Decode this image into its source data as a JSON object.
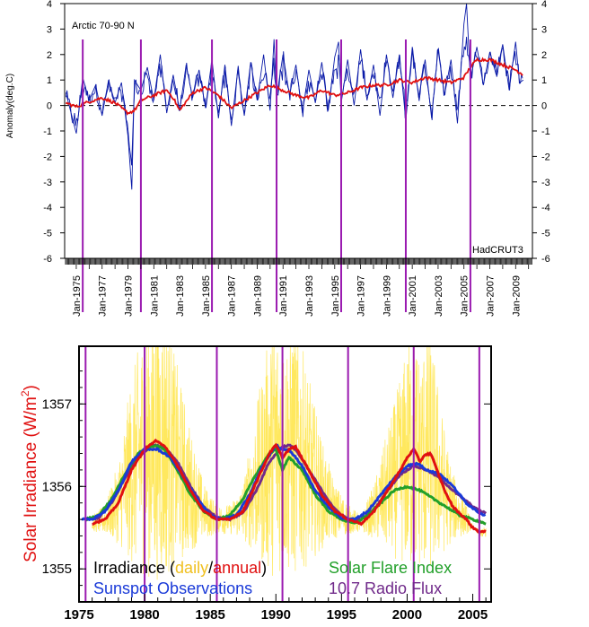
{
  "chart_data": [
    {
      "type": "line",
      "title": "Arctic 70-90 N",
      "source_label": "HadCRUT3",
      "ylabel": "Anomaly(deg.C)",
      "ylim": [
        -6,
        4
      ],
      "yticks": [
        4,
        3,
        2,
        1,
        0,
        -1,
        -2,
        -3,
        -4,
        -5,
        -6
      ],
      "xlim": [
        1974.1,
        2010.3
      ],
      "xtick_labels": [
        "Jan-1975",
        "Jan-1977",
        "Jan-1979",
        "Jan-1981",
        "Jan-1983",
        "Jan-1985",
        "Jan-1987",
        "Jan-1989",
        "Jan-1991",
        "Jan-1993",
        "Jan-1995",
        "Jan-1997",
        "Jan-1999",
        "Jan-2001",
        "Jan-2003",
        "Jan-2005",
        "Jan-2007",
        "Jan-2009"
      ],
      "zero_line": "dashed",
      "series": [
        {
          "style": "monthly",
          "color": "#0a1aa8",
          "x": [
            1974.2,
            1975.0,
            1975.5,
            1976.0,
            1976.5,
            1977.0,
            1977.5,
            1978.0,
            1978.5,
            1979.0,
            1979.3,
            1979.5,
            1980.0,
            1980.5,
            1981.0,
            1981.5,
            1982.0,
            1982.5,
            1983.0,
            1983.5,
            1984.0,
            1984.5,
            1985.0,
            1985.5,
            1986.0,
            1986.5,
            1987.0,
            1987.5,
            1988.0,
            1988.5,
            1989.0,
            1989.5,
            1990.0,
            1990.3,
            1990.5,
            1991.0,
            1991.5,
            1992.0,
            1992.5,
            1993.0,
            1993.5,
            1994.0,
            1994.5,
            1995.0,
            1995.3,
            1995.5,
            1996.0,
            1996.5,
            1997.0,
            1997.5,
            1998.0,
            1998.5,
            1999.0,
            1999.5,
            2000.0,
            2000.5,
            2001.0,
            2001.5,
            2002.0,
            2002.5,
            2003.0,
            2003.5,
            2004.0,
            2004.5,
            2005.0,
            2005.2,
            2005.5,
            2006.0,
            2006.5,
            2007.0,
            2007.5,
            2008.0,
            2008.5,
            2009.0,
            2009.3,
            2009.6
          ],
          "y": [
            0.5,
            -1.1,
            1.1,
            0.2,
            0.8,
            -0.4,
            1.0,
            0.1,
            0.9,
            -1.2,
            -3.3,
            1.0,
            0.6,
            1.5,
            0.2,
            2.0,
            -0.3,
            1.2,
            -0.2,
            1.6,
            0.3,
            1.4,
            -0.1,
            1.8,
            -0.5,
            1.6,
            -0.8,
            1.4,
            -0.4,
            1.7,
            0.2,
            2.0,
            -0.2,
            2.6,
            0.3,
            2.0,
            0.4,
            1.6,
            -0.3,
            1.4,
            0.1,
            1.7,
            -0.2,
            1.9,
            2.5,
            0.1,
            1.8,
            0.0,
            2.2,
            0.2,
            1.6,
            -0.4,
            2.0,
            0.3,
            2.0,
            -0.6,
            2.3,
            0.3,
            1.8,
            -0.5,
            2.2,
            0.4,
            1.8,
            -0.7,
            3.2,
            4.0,
            1.0,
            2.3,
            0.8,
            2.1,
            1.2,
            2.4,
            0.6,
            2.5,
            0.9,
            1.0
          ]
        },
        {
          "style": "smoothed",
          "color": "#e01010",
          "x": [
            1974.2,
            1975.0,
            1976.0,
            1977.0,
            1978.0,
            1979.0,
            1979.5,
            1980.0,
            1981.0,
            1982.0,
            1982.5,
            1983.0,
            1984.0,
            1985.0,
            1986.0,
            1987.0,
            1988.0,
            1989.0,
            1990.0,
            1991.0,
            1992.0,
            1993.0,
            1994.0,
            1995.0,
            1996.0,
            1997.0,
            1998.0,
            1999.0,
            2000.0,
            2001.0,
            2002.0,
            2003.0,
            2004.0,
            2005.0,
            2005.5,
            2006.0,
            2007.0,
            2008.0,
            2009.0,
            2009.6
          ],
          "y": [
            0.1,
            -0.05,
            0.15,
            0.3,
            0.1,
            -0.3,
            -0.2,
            0.2,
            0.4,
            0.6,
            0.3,
            -0.2,
            0.5,
            0.7,
            0.4,
            -0.1,
            0.2,
            0.5,
            0.8,
            0.6,
            0.4,
            0.3,
            0.6,
            0.4,
            0.5,
            0.7,
            0.8,
            0.8,
            1.0,
            0.9,
            1.1,
            1.0,
            0.9,
            1.1,
            1.5,
            1.8,
            1.8,
            1.6,
            1.4,
            1.2
          ]
        }
      ],
      "vertical_markers": [
        1975.5,
        1980.0,
        1985.5,
        1990.5,
        1995.5,
        2000.5,
        2005.5
      ]
    },
    {
      "type": "line",
      "ylabel": "Solar Irradiance (W/m²)",
      "ylabel_text": "Solar Irradiance (W/m",
      "ylabel_sup": "2",
      "ylabel_close": ")",
      "ylim": [
        1354.6,
        1357.7
      ],
      "yticks": [
        1357,
        1356,
        1355
      ],
      "xlim": [
        1975.0,
        2006.4
      ],
      "xticks": [
        1975,
        1980,
        1985,
        1990,
        1995,
        2000,
        2005
      ],
      "legend": {
        "irradiance_prefix": "Irradiance (",
        "daily": "daily",
        "slash": "/",
        "annual": "annual",
        "irradiance_suffix": ")",
        "flare": "Solar Flare Index",
        "sunspot": "Sunspot Observations",
        "radio": "10.7 Radio Flux"
      },
      "colors": {
        "daily": "#ffe64d",
        "annual": "#e01010",
        "flare": "#22a02a",
        "sunspot": "#1a3ad8",
        "radio": "#702a8a",
        "markers": "#9a1ab0"
      },
      "series": [
        {
          "name": "annual",
          "color": "#e01010",
          "x": [
            1976.0,
            1977.0,
            1978.0,
            1979.0,
            1980.0,
            1980.8,
            1981.5,
            1982.5,
            1983.5,
            1984.5,
            1985.5,
            1986.5,
            1987.5,
            1988.5,
            1989.5,
            1990.0,
            1990.5,
            1991.0,
            1991.5,
            1992.5,
            1993.5,
            1994.5,
            1995.5,
            1996.5,
            1997.5,
            1998.5,
            1999.5,
            2000.0,
            2000.5,
            2001.0,
            2001.3,
            2001.8,
            2002.5,
            2003.0,
            2003.5,
            2004.5,
            2005.0,
            2005.5,
            2006.0
          ],
          "y": [
            1355.55,
            1355.6,
            1355.8,
            1356.2,
            1356.45,
            1356.55,
            1356.5,
            1356.25,
            1355.95,
            1355.7,
            1355.6,
            1355.6,
            1355.7,
            1356.05,
            1356.4,
            1356.5,
            1356.35,
            1356.45,
            1356.48,
            1356.2,
            1355.9,
            1355.7,
            1355.6,
            1355.55,
            1355.7,
            1355.95,
            1356.2,
            1356.35,
            1356.45,
            1356.3,
            1356.38,
            1356.4,
            1356.1,
            1355.9,
            1355.75,
            1355.6,
            1355.5,
            1355.45,
            1355.45
          ]
        },
        {
          "name": "sunspot",
          "color": "#1a3ad8",
          "x": [
            1975.2,
            1976.0,
            1977.0,
            1978.0,
            1979.0,
            1980.0,
            1981.0,
            1982.0,
            1983.0,
            1984.0,
            1985.0,
            1986.0,
            1987.0,
            1988.0,
            1989.0,
            1990.0,
            1990.5,
            1991.0,
            1992.0,
            1993.0,
            1994.0,
            1995.0,
            1996.0,
            1997.0,
            1998.0,
            1999.0,
            2000.0,
            2000.8,
            2001.5,
            2002.5,
            2003.5,
            2004.5,
            2005.5,
            2006.0
          ],
          "y": [
            1355.6,
            1355.6,
            1355.7,
            1355.95,
            1356.3,
            1356.45,
            1356.45,
            1356.35,
            1356.1,
            1355.85,
            1355.65,
            1355.6,
            1355.65,
            1355.9,
            1356.25,
            1356.5,
            1356.45,
            1356.45,
            1356.25,
            1355.95,
            1355.75,
            1355.62,
            1355.6,
            1355.7,
            1355.9,
            1356.1,
            1356.25,
            1356.28,
            1356.2,
            1356.15,
            1356.0,
            1355.8,
            1355.68,
            1355.65
          ]
        },
        {
          "name": "flare",
          "color": "#22a02a",
          "x": [
            1975.5,
            1976.5,
            1977.5,
            1978.5,
            1979.5,
            1980.0,
            1980.8,
            1981.5,
            1982.5,
            1983.5,
            1984.5,
            1985.5,
            1986.5,
            1987.5,
            1988.5,
            1989.5,
            1990.0,
            1990.5,
            1991.0,
            1992.0,
            1993.0,
            1994.0,
            1995.0,
            1996.0,
            1997.0,
            1998.0,
            1999.0,
            2000.0,
            2001.0,
            2002.0,
            2003.0,
            2004.0,
            2005.0,
            2006.0
          ],
          "y": [
            1355.6,
            1355.65,
            1355.85,
            1356.15,
            1356.4,
            1356.45,
            1356.5,
            1356.45,
            1356.2,
            1355.9,
            1355.7,
            1355.6,
            1355.65,
            1355.85,
            1356.15,
            1356.4,
            1356.45,
            1356.2,
            1356.35,
            1356.2,
            1355.9,
            1355.7,
            1355.6,
            1355.55,
            1355.65,
            1355.8,
            1355.95,
            1356.0,
            1355.95,
            1355.85,
            1355.75,
            1355.65,
            1355.6,
            1355.55
          ]
        },
        {
          "name": "radio",
          "color": "#702a8a",
          "x": [
            1975.5,
            1976.5,
            1977.5,
            1978.5,
            1979.5,
            1980.5,
            1981.5,
            1982.5,
            1983.5,
            1984.5,
            1985.5,
            1986.5,
            1987.5,
            1988.5,
            1989.5,
            1990.5,
            1991.0,
            1991.5,
            1992.5,
            1993.5,
            1994.5,
            1995.5,
            1996.5,
            1997.5,
            1998.5,
            1999.5,
            2000.5,
            2001.5,
            2002.5,
            2003.5,
            2004.5,
            2005.5,
            2006.0
          ],
          "y": [
            1355.6,
            1355.62,
            1355.8,
            1356.1,
            1356.35,
            1356.5,
            1356.48,
            1356.3,
            1356.0,
            1355.75,
            1355.62,
            1355.6,
            1355.68,
            1355.95,
            1356.3,
            1356.48,
            1356.5,
            1356.45,
            1356.2,
            1355.95,
            1355.72,
            1355.6,
            1355.6,
            1355.72,
            1355.95,
            1356.15,
            1356.25,
            1356.2,
            1356.1,
            1355.95,
            1355.82,
            1355.7,
            1355.68
          ]
        }
      ],
      "vertical_markers": [
        1975.5,
        1980.0,
        1985.5,
        1990.5,
        1995.5,
        2000.5,
        2005.5
      ]
    }
  ]
}
